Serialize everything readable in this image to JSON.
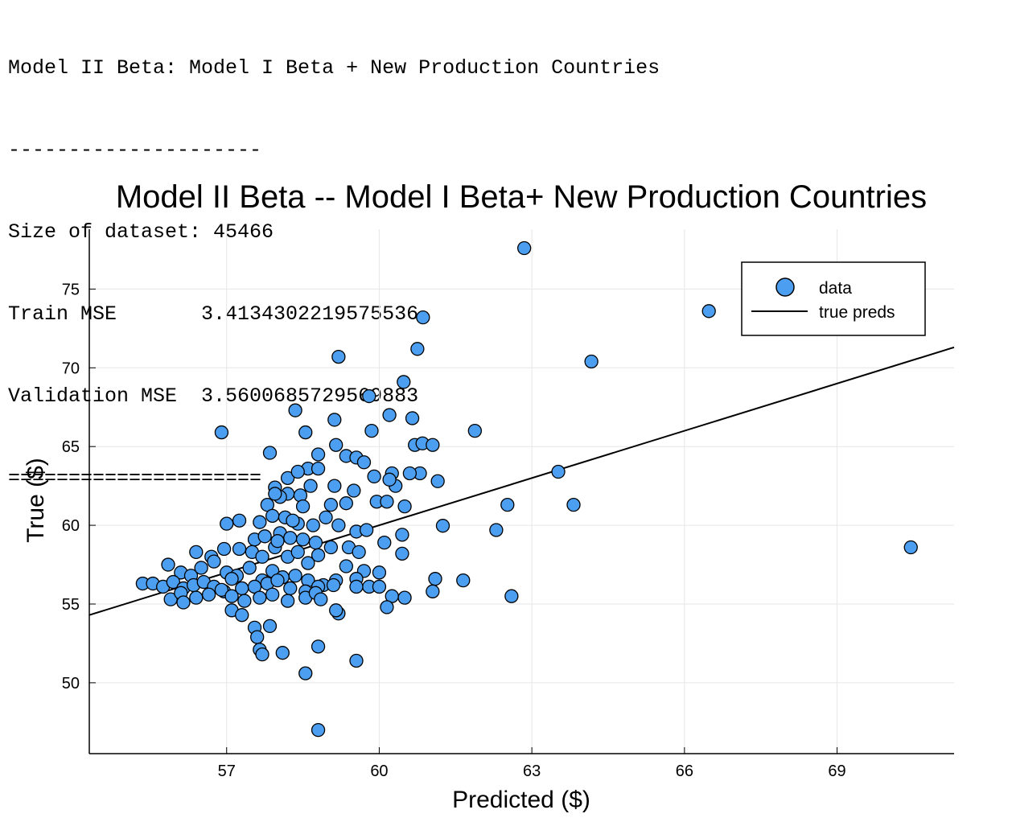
{
  "console": {
    "line1": "Model II Beta: Model I Beta + New Production Countries",
    "line2": "---------------------",
    "line3": "Size of dataset: 45466",
    "line4": "Train MSE       3.4134302219575536",
    "line5": "Validation MSE  3.5600685729569883",
    "line6": "====================="
  },
  "chart_data": {
    "type": "scatter",
    "title": "Model II Beta -- Model I Beta+ New Production Countries",
    "xlabel": "Predicted ($)",
    "ylabel": "True ($)",
    "xlim": [
      54.3,
      71.3
    ],
    "ylim": [
      45.5,
      78.8
    ],
    "xticks": [
      57,
      60,
      63,
      66,
      69
    ],
    "yticks": [
      50,
      55,
      60,
      65,
      70,
      75
    ],
    "grid": true,
    "legend_position": "top-right",
    "colors": {
      "points": "#4c9ff0",
      "line": "#000000"
    },
    "series": [
      {
        "name": "data",
        "kind": "scatter",
        "points": [
          [
            62.85,
            77.6
          ],
          [
            66.48,
            73.6
          ],
          [
            60.86,
            73.2
          ],
          [
            60.75,
            71.2
          ],
          [
            64.17,
            70.4
          ],
          [
            59.2,
            70.7
          ],
          [
            60.48,
            69.1
          ],
          [
            59.8,
            68.2
          ],
          [
            60.2,
            67.0
          ],
          [
            60.65,
            66.8
          ],
          [
            58.35,
            67.3
          ],
          [
            59.12,
            66.7
          ],
          [
            56.9,
            65.9
          ],
          [
            58.55,
            65.9
          ],
          [
            59.85,
            66.0
          ],
          [
            61.88,
            66.0
          ],
          [
            60.7,
            65.1
          ],
          [
            60.85,
            65.2
          ],
          [
            61.05,
            65.1
          ],
          [
            59.15,
            65.1
          ],
          [
            57.85,
            64.6
          ],
          [
            58.8,
            64.5
          ],
          [
            59.35,
            64.4
          ],
          [
            59.55,
            64.3
          ],
          [
            59.7,
            64.0
          ],
          [
            58.6,
            63.6
          ],
          [
            58.8,
            63.6
          ],
          [
            58.2,
            63.0
          ],
          [
            58.4,
            63.4
          ],
          [
            59.9,
            63.1
          ],
          [
            60.25,
            63.3
          ],
          [
            60.8,
            63.3
          ],
          [
            60.6,
            63.3
          ],
          [
            63.52,
            63.4
          ],
          [
            61.15,
            62.8
          ],
          [
            60.32,
            62.5
          ],
          [
            60.2,
            62.9
          ],
          [
            57.95,
            62.4
          ],
          [
            58.2,
            62.0
          ],
          [
            58.65,
            62.5
          ],
          [
            59.12,
            62.5
          ],
          [
            59.5,
            62.2
          ],
          [
            58.05,
            61.8
          ],
          [
            58.45,
            61.9
          ],
          [
            57.8,
            61.3
          ],
          [
            58.5,
            61.2
          ],
          [
            59.05,
            61.3
          ],
          [
            59.35,
            61.4
          ],
          [
            59.95,
            61.5
          ],
          [
            60.15,
            61.5
          ],
          [
            60.5,
            61.2
          ],
          [
            62.52,
            61.3
          ],
          [
            63.82,
            61.3
          ],
          [
            57.65,
            60.2
          ],
          [
            57.9,
            60.6
          ],
          [
            58.15,
            60.5
          ],
          [
            58.4,
            60.1
          ],
          [
            58.7,
            60.0
          ],
          [
            58.95,
            60.5
          ],
          [
            59.2,
            60.0
          ],
          [
            59.55,
            59.6
          ],
          [
            59.75,
            59.7
          ],
          [
            60.45,
            59.4
          ],
          [
            61.25,
            59.97
          ],
          [
            62.3,
            59.7
          ],
          [
            57.0,
            60.1
          ],
          [
            57.25,
            60.3
          ],
          [
            57.55,
            59.1
          ],
          [
            57.75,
            59.3
          ],
          [
            58.05,
            59.5
          ],
          [
            58.25,
            59.2
          ],
          [
            58.5,
            59.1
          ],
          [
            58.75,
            58.9
          ],
          [
            59.05,
            58.6
          ],
          [
            59.4,
            58.6
          ],
          [
            59.6,
            58.3
          ],
          [
            60.1,
            58.9
          ],
          [
            60.45,
            58.2
          ],
          [
            70.45,
            58.6
          ],
          [
            56.4,
            58.3
          ],
          [
            56.7,
            58.0
          ],
          [
            56.95,
            58.5
          ],
          [
            57.25,
            58.5
          ],
          [
            57.5,
            58.3
          ],
          [
            57.7,
            58.0
          ],
          [
            57.95,
            58.6
          ],
          [
            58.2,
            58.0
          ],
          [
            58.4,
            58.3
          ],
          [
            58.6,
            57.6
          ],
          [
            58.8,
            58.1
          ],
          [
            59.35,
            57.4
          ],
          [
            59.7,
            57.1
          ],
          [
            60.0,
            57.0
          ],
          [
            55.85,
            57.5
          ],
          [
            56.1,
            57.0
          ],
          [
            56.3,
            56.8
          ],
          [
            56.5,
            57.3
          ],
          [
            56.75,
            57.7
          ],
          [
            57.0,
            57.0
          ],
          [
            57.2,
            56.8
          ],
          [
            57.45,
            57.3
          ],
          [
            57.7,
            56.5
          ],
          [
            57.9,
            57.1
          ],
          [
            58.1,
            56.7
          ],
          [
            58.35,
            56.8
          ],
          [
            58.6,
            56.5
          ],
          [
            58.9,
            56.2
          ],
          [
            59.15,
            56.5
          ],
          [
            59.55,
            56.6
          ],
          [
            59.8,
            56.1
          ],
          [
            60.0,
            56.1
          ],
          [
            61.1,
            56.6
          ],
          [
            61.65,
            56.5
          ],
          [
            55.35,
            56.3
          ],
          [
            55.55,
            56.3
          ],
          [
            55.75,
            56.1
          ],
          [
            55.95,
            56.4
          ],
          [
            56.15,
            56.0
          ],
          [
            56.35,
            56.2
          ],
          [
            56.55,
            56.4
          ],
          [
            56.75,
            56.1
          ],
          [
            56.95,
            55.8
          ],
          [
            57.1,
            56.6
          ],
          [
            57.3,
            56.0
          ],
          [
            57.55,
            56.1
          ],
          [
            57.8,
            56.3
          ],
          [
            58.0,
            56.5
          ],
          [
            58.25,
            56.0
          ],
          [
            58.55,
            55.8
          ],
          [
            58.8,
            56.1
          ],
          [
            59.1,
            56.2
          ],
          [
            59.55,
            56.1
          ],
          [
            60.25,
            55.5
          ],
          [
            61.05,
            55.8
          ],
          [
            62.6,
            55.5
          ],
          [
            55.9,
            55.3
          ],
          [
            56.1,
            55.7
          ],
          [
            56.4,
            55.4
          ],
          [
            56.65,
            55.6
          ],
          [
            56.9,
            55.9
          ],
          [
            57.1,
            55.5
          ],
          [
            57.35,
            55.2
          ],
          [
            57.65,
            55.4
          ],
          [
            57.9,
            55.6
          ],
          [
            58.2,
            55.2
          ],
          [
            58.55,
            55.4
          ],
          [
            58.75,
            55.7
          ],
          [
            58.85,
            55.3
          ],
          [
            59.2,
            54.4
          ],
          [
            56.15,
            55.1
          ],
          [
            57.1,
            54.6
          ],
          [
            57.3,
            54.3
          ],
          [
            57.55,
            53.5
          ],
          [
            57.85,
            53.6
          ],
          [
            57.6,
            52.9
          ],
          [
            57.65,
            52.1
          ],
          [
            57.7,
            51.8
          ],
          [
            58.1,
            51.9
          ],
          [
            58.8,
            52.3
          ],
          [
            59.55,
            51.4
          ],
          [
            58.55,
            50.6
          ],
          [
            58.8,
            47.0
          ],
          [
            60.15,
            54.8
          ],
          [
            59.15,
            54.6
          ],
          [
            60.5,
            55.4
          ],
          [
            58.3,
            60.3
          ],
          [
            57.95,
            62.0
          ],
          [
            58.0,
            59.0
          ]
        ]
      },
      {
        "name": "true preds",
        "kind": "line",
        "points": [
          [
            54.3,
            54.3
          ],
          [
            71.3,
            71.3
          ]
        ]
      }
    ]
  }
}
